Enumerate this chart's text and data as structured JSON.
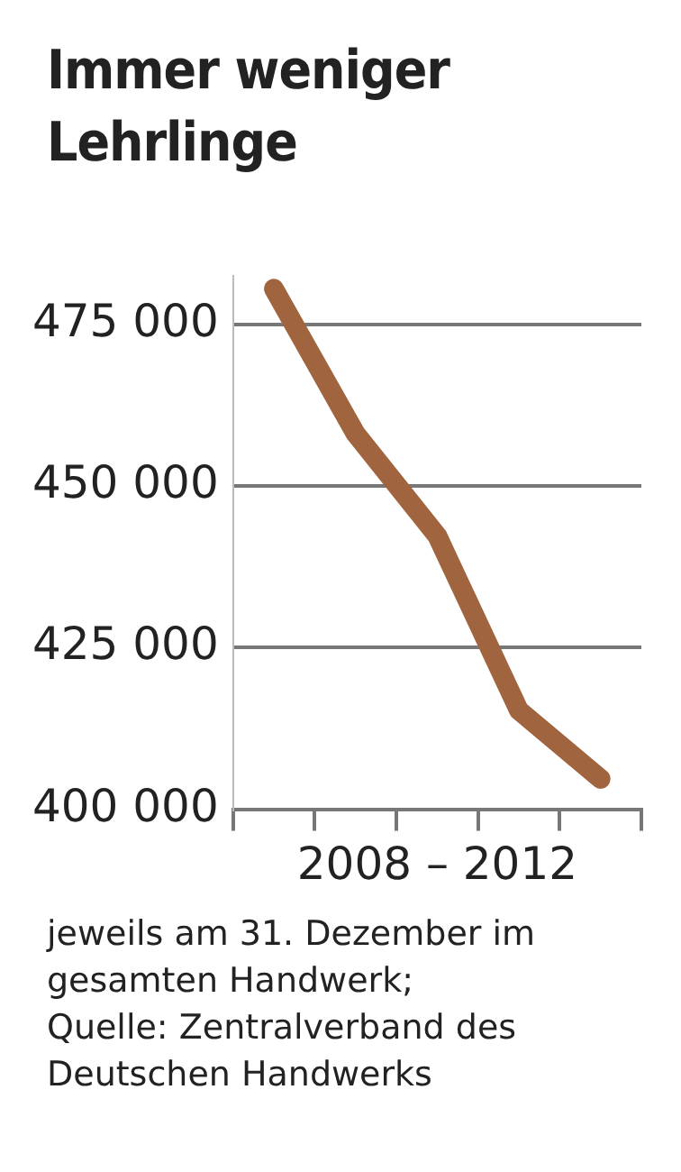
{
  "chart_data": {
    "type": "line",
    "title": "Immer weniger Lehrlinge",
    "xlabel": "2008 – 2012",
    "categories": [
      null,
      null,
      null,
      null,
      null
    ],
    "series": [
      {
        "color": "#a0653f",
        "values": [
          480500,
          458100,
          442300,
          415300,
          404700
        ]
      }
    ],
    "ylim": [
      400000,
      482500
    ],
    "yticks": [
      {
        "value": 400000,
        "label": "400 000"
      },
      {
        "value": 425000,
        "label": "425 000"
      },
      {
        "value": 450000,
        "label": "450 000"
      },
      {
        "value": 475000,
        "label": "475 000"
      }
    ],
    "grid": "y",
    "legend": false,
    "marker": "none",
    "line_style": "solid",
    "annotations": [
      "jeweils am 31. Dezember im gesamten Handwerk;",
      "Quelle: Zentralverband des Deutschen Handwerks"
    ]
  }
}
